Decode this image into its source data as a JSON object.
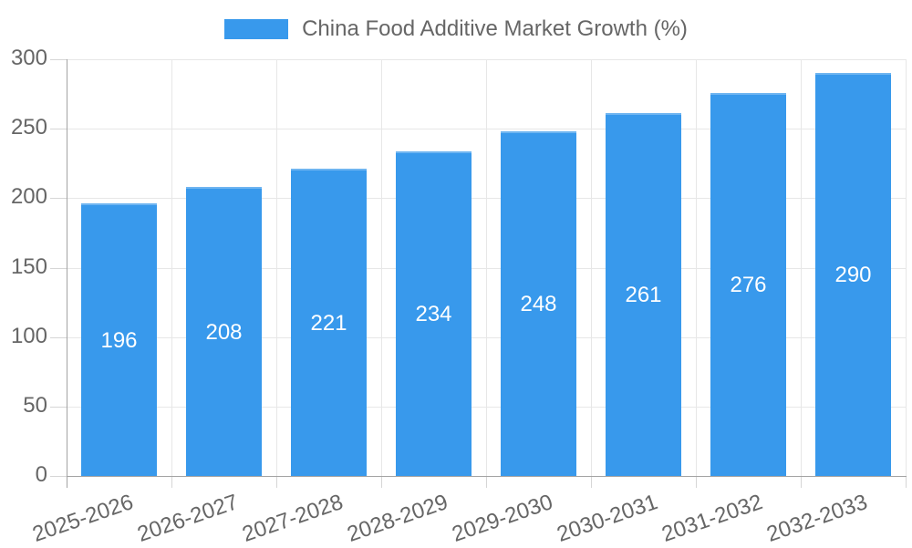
{
  "chart_data": {
    "type": "bar",
    "title": "",
    "legend": {
      "label": "China Food Additive Market Growth (%)",
      "position": "top"
    },
    "categories": [
      "2025-2026",
      "2026-2027",
      "2027-2028",
      "2028-2029",
      "2029-2030",
      "2030-2031",
      "2031-2032",
      "2032-2033"
    ],
    "series": [
      {
        "name": "China Food Additive Market Growth (%)",
        "values": [
          196,
          208,
          221,
          234,
          248,
          261,
          276,
          290
        ]
      }
    ],
    "xlabel": "",
    "ylabel": "",
    "ylim": [
      0,
      300
    ],
    "yticks": [
      0,
      50,
      100,
      150,
      200,
      250,
      300
    ],
    "grid": true,
    "value_labels": "inside-center",
    "colors": {
      "bar": "#3899EC",
      "value_label": "#FFFFFF",
      "axis_text": "#666666",
      "gridline": "#E7E7E7",
      "axis_line": "#A3A3A3",
      "background": "#FFFFFF"
    }
  }
}
